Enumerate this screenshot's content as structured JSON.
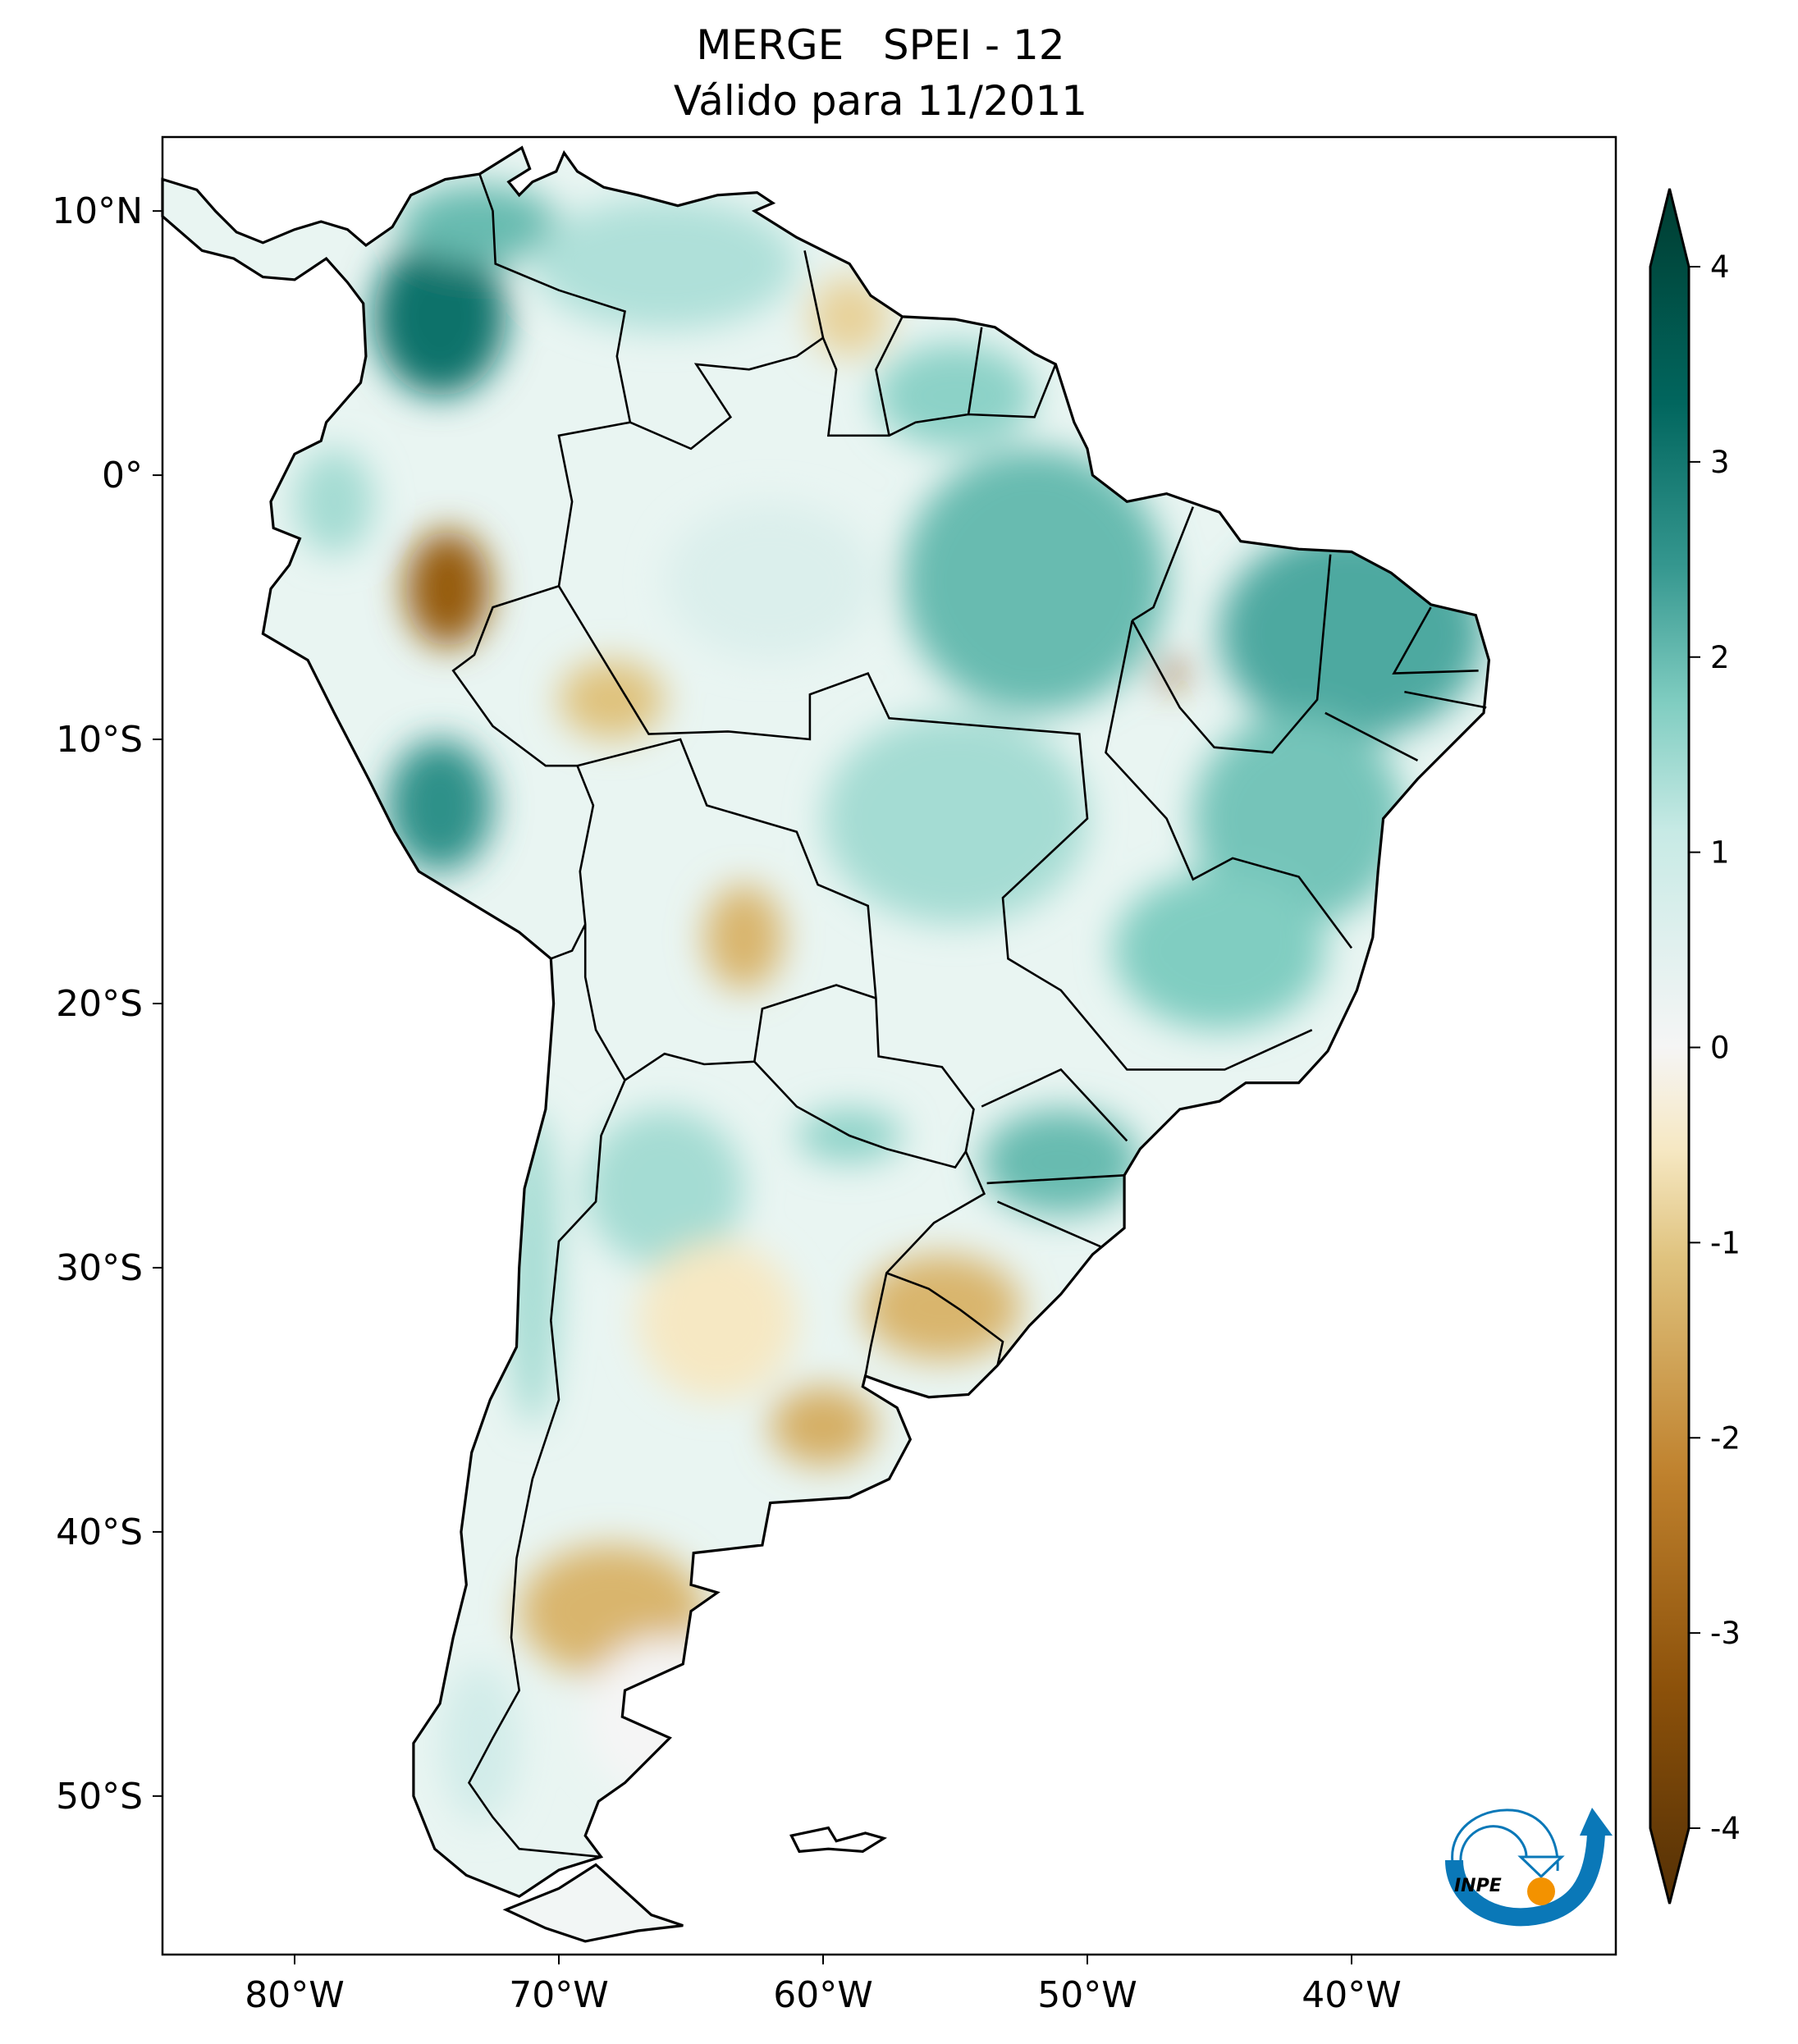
{
  "title": {
    "line1": "MERGE   SPEI - 12",
    "line2": "Válido para 11/2011"
  },
  "chart_data": {
    "type": "heatmap",
    "title": "MERGE   SPEI - 12 / Válido para 11/2011",
    "variable": "SPEI - 12",
    "dataset": "MERGE",
    "period": "11/2011",
    "lon_range": [
      -85,
      -30
    ],
    "lat_range": [
      -56,
      12.8
    ],
    "xticks": [
      {
        "value": -80,
        "label": "80°W"
      },
      {
        "value": -70,
        "label": "70°W"
      },
      {
        "value": -60,
        "label": "60°W"
      },
      {
        "value": -50,
        "label": "50°W"
      },
      {
        "value": -40,
        "label": "40°W"
      }
    ],
    "yticks": [
      {
        "value": 10,
        "label": "10°N"
      },
      {
        "value": 0,
        "label": "0°"
      },
      {
        "value": -10,
        "label": "10°S"
      },
      {
        "value": -20,
        "label": "20°S"
      },
      {
        "value": -30,
        "label": "30°S"
      },
      {
        "value": -40,
        "label": "40°S"
      },
      {
        "value": -50,
        "label": "50°S"
      }
    ],
    "colorbar": {
      "cmap": "BrBG",
      "vmin": -4,
      "vmax": 4,
      "extend": "both",
      "ticks": [
        {
          "value": 4,
          "label": "4"
        },
        {
          "value": 3,
          "label": "3"
        },
        {
          "value": 2,
          "label": "2"
        },
        {
          "value": 1,
          "label": "1"
        },
        {
          "value": 0,
          "label": "0"
        },
        {
          "value": -1,
          "label": "-1"
        },
        {
          "value": -2,
          "label": "-2"
        },
        {
          "value": -3,
          "label": "-3"
        },
        {
          "value": -4,
          "label": "-4"
        }
      ]
    }
  },
  "logo": {
    "text": "INPE"
  },
  "colors": {
    "logo_blue": "#0a78b8",
    "logo_orange": "#f39200"
  }
}
